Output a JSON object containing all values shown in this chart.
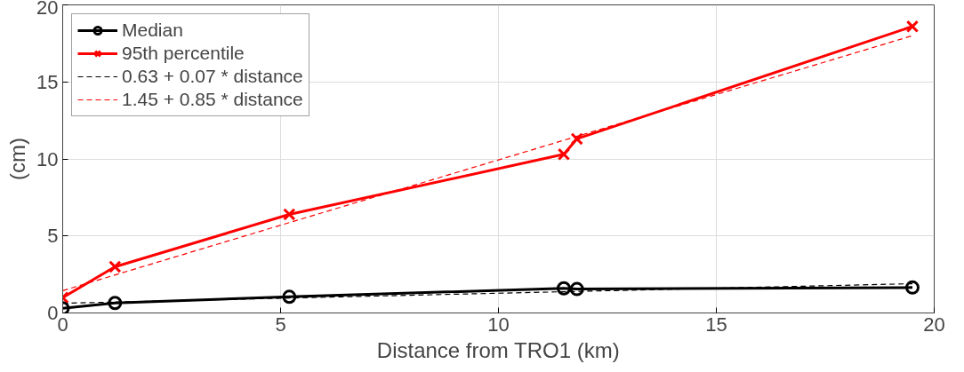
{
  "chart_data": {
    "type": "line",
    "xlabel": "Distance from TRO1 (km)",
    "ylabel": "(cm)",
    "xlim": [
      0,
      20
    ],
    "ylim": [
      0,
      20
    ],
    "xticks": [
      0,
      5,
      10,
      15,
      20
    ],
    "yticks": [
      0,
      5,
      10,
      15,
      20
    ],
    "grid": true,
    "legend": "top left",
    "line_style": "solid",
    "series": [
      {
        "name": "Median",
        "color": "#000000",
        "marker": "circle",
        "x": [
          0,
          1.2,
          5.2,
          11.5,
          11.8,
          19.5
        ],
        "values": [
          0.3,
          0.65,
          1.05,
          1.6,
          1.55,
          1.65
        ]
      },
      {
        "name": "95th percentile",
        "color": "#ff0000",
        "marker": "cross",
        "x": [
          0,
          1.2,
          5.2,
          11.5,
          11.8,
          19.5
        ],
        "values": [
          1.0,
          3.0,
          6.4,
          10.3,
          11.3,
          18.6
        ]
      },
      {
        "name": "0.63 + 0.07 * distance",
        "color": "#000000",
        "marker": "none",
        "line_style": "dashed",
        "x": [
          0,
          19.5
        ],
        "values": [
          0.63,
          1.9
        ]
      },
      {
        "name": "1.45 + 0.85 * distance",
        "color": "#ff0000",
        "marker": "none",
        "line_style": "dashed",
        "x": [
          0,
          19.5
        ],
        "values": [
          1.45,
          18.0
        ]
      }
    ]
  }
}
